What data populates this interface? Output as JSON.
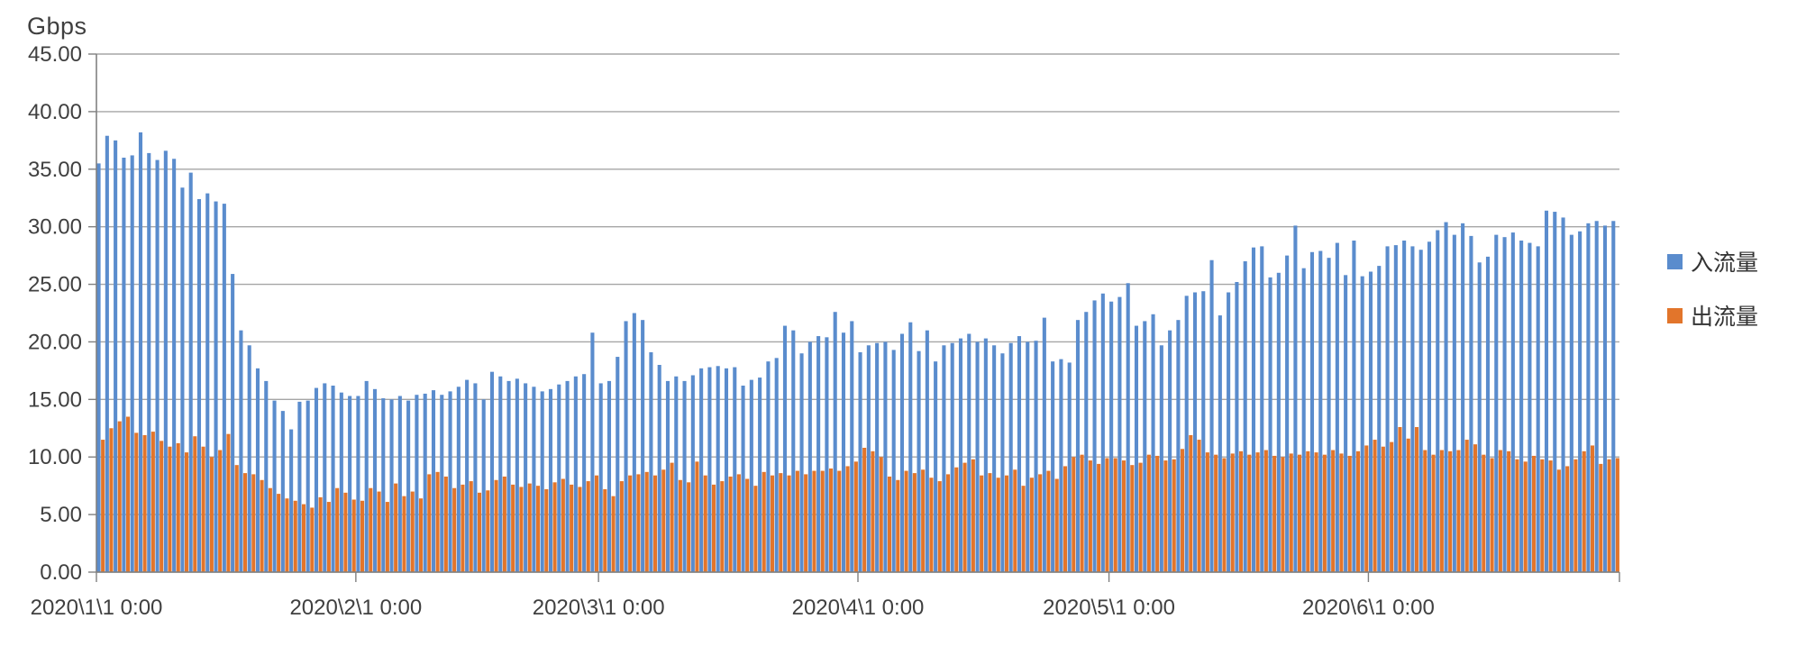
{
  "colors": {
    "background": "#FFFFFF",
    "grid": "#A6A6A6",
    "axis": "#808080",
    "text": "#404040",
    "in_series": "#5A8CCD",
    "out_series": "#E2752B"
  },
  "chart_data": {
    "type": "bar",
    "title": "",
    "unit_label": "Gbps",
    "grid": true,
    "legend_position": "right",
    "n_days": 182,
    "x_axis": {
      "start_label": "2020\\1\\1 0:00",
      "interval": "1 day",
      "tick_labels": [
        "2020\\1\\1 0:00",
        "2020\\2\\1 0:00",
        "2020\\3\\1 0:00",
        "2020\\4\\1 0:00",
        "2020\\5\\1 0:00",
        "2020\\6\\1 0:00"
      ],
      "tick_day_index": [
        0,
        31,
        60,
        91,
        121,
        152
      ]
    },
    "y_axis": {
      "min": 0,
      "max": 45,
      "step": 5,
      "tick_labels": [
        "45.00",
        "40.00",
        "35.00",
        "30.00",
        "25.00",
        "20.00",
        "15.00",
        "10.00",
        "5.00",
        "0.00"
      ]
    },
    "series": [
      {
        "name": "入流量",
        "color": "#5A8CCD",
        "values": [
          35.5,
          37.9,
          37.5,
          36.0,
          36.2,
          38.2,
          36.4,
          35.8,
          36.6,
          35.9,
          33.4,
          34.7,
          32.4,
          32.9,
          32.2,
          32.0,
          25.9,
          21.0,
          19.7,
          17.7,
          16.6,
          14.9,
          14.0,
          12.4,
          14.8,
          14.9,
          16.0,
          16.4,
          16.2,
          15.6,
          15.3,
          15.3,
          16.6,
          15.9,
          15.1,
          15.0,
          15.3,
          14.9,
          15.4,
          15.5,
          15.8,
          15.4,
          15.7,
          16.1,
          16.7,
          16.4,
          15.0,
          17.4,
          17.0,
          16.6,
          16.8,
          16.4,
          16.1,
          15.7,
          15.9,
          16.3,
          16.6,
          17.0,
          17.2,
          20.8,
          16.4,
          16.6,
          18.7,
          21.8,
          22.5,
          21.9,
          19.1,
          18.0,
          16.6,
          17.0,
          16.6,
          17.1,
          17.7,
          17.8,
          17.9,
          17.7,
          17.8,
          16.2,
          16.7,
          16.9,
          18.3,
          18.6,
          21.4,
          21.0,
          19.0,
          20.0,
          20.5,
          20.4,
          22.6,
          20.8,
          21.8,
          19.1,
          19.7,
          19.9,
          20.0,
          19.3,
          20.7,
          21.7,
          19.2,
          21.0,
          18.3,
          19.7,
          19.9,
          20.3,
          20.7,
          20.0,
          20.3,
          19.7,
          19.0,
          19.9,
          20.5,
          20.0,
          20.1,
          22.1,
          18.3,
          18.5,
          18.2,
          21.9,
          22.6,
          23.6,
          24.2,
          23.5,
          23.9,
          25.1,
          21.4,
          21.8,
          22.4,
          19.7,
          21.0,
          21.9,
          24.0,
          24.3,
          24.4,
          27.1,
          22.3,
          24.3,
          25.2,
          27.0,
          28.2,
          28.3,
          25.6,
          26.0,
          27.5,
          30.1,
          26.4,
          27.8,
          27.9,
          27.3,
          28.6,
          25.8,
          28.8,
          25.7,
          26.1,
          26.6,
          28.3,
          28.4,
          28.8,
          28.3,
          28.0,
          28.7,
          29.7,
          30.4,
          29.3,
          30.3,
          29.2,
          26.9,
          27.4,
          29.3,
          29.1,
          29.5,
          28.8,
          28.6,
          28.3,
          31.4,
          31.3,
          30.8,
          29.3,
          29.6,
          30.3,
          30.5,
          30.1,
          30.5
        ]
      },
      {
        "name": "出流量",
        "color": "#E2752B",
        "values": [
          11.5,
          12.5,
          13.1,
          13.5,
          12.1,
          11.9,
          12.2,
          11.4,
          10.9,
          11.2,
          10.4,
          11.8,
          10.9,
          10.0,
          10.6,
          12.0,
          9.3,
          8.6,
          8.5,
          8.0,
          7.3,
          6.8,
          6.4,
          6.2,
          5.9,
          5.6,
          6.5,
          6.1,
          7.3,
          6.9,
          6.3,
          6.2,
          7.3,
          7.0,
          6.1,
          7.7,
          6.6,
          7.0,
          6.4,
          8.5,
          8.7,
          8.3,
          7.3,
          7.6,
          7.9,
          6.9,
          7.1,
          8.0,
          8.3,
          7.6,
          7.4,
          7.7,
          7.5,
          7.2,
          7.8,
          8.1,
          7.6,
          7.4,
          7.9,
          8.4,
          7.2,
          6.6,
          7.9,
          8.4,
          8.5,
          8.7,
          8.4,
          8.9,
          9.5,
          8.0,
          7.8,
          9.6,
          8.4,
          7.6,
          7.9,
          8.3,
          8.5,
          8.1,
          7.5,
          8.7,
          8.4,
          8.6,
          8.4,
          8.8,
          8.5,
          8.8,
          8.8,
          9.0,
          8.8,
          9.2,
          9.6,
          10.8,
          10.5,
          10.0,
          8.3,
          8.0,
          8.8,
          8.6,
          8.9,
          8.2,
          7.9,
          8.5,
          9.1,
          9.5,
          9.8,
          8.4,
          8.6,
          8.2,
          8.4,
          8.9,
          7.5,
          8.2,
          8.5,
          8.8,
          8.1,
          9.2,
          10.0,
          10.2,
          9.7,
          9.4,
          9.9,
          9.9,
          9.7,
          9.3,
          9.5,
          10.2,
          10.1,
          9.7,
          9.8,
          10.7,
          11.9,
          11.5,
          10.4,
          10.2,
          9.9,
          10.3,
          10.5,
          10.2,
          10.4,
          10.6,
          10.1,
          10.0,
          10.3,
          10.2,
          10.5,
          10.4,
          10.2,
          10.6,
          10.3,
          10.1,
          10.5,
          11.0,
          11.5,
          10.9,
          11.3,
          12.6,
          11.6,
          12.6,
          10.6,
          10.2,
          10.6,
          10.5,
          10.6,
          11.5,
          11.1,
          10.2,
          9.9,
          10.6,
          10.5,
          9.8,
          9.6,
          10.1,
          9.8,
          9.7,
          8.9,
          9.2,
          9.8,
          10.5,
          11.0,
          9.4,
          9.8,
          9.9
        ]
      }
    ]
  }
}
